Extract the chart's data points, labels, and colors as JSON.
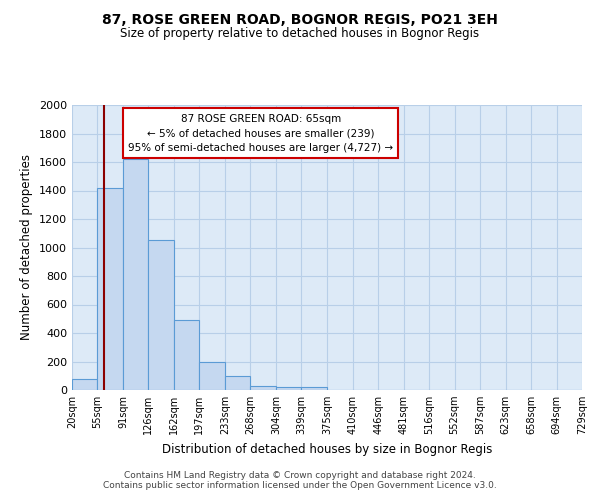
{
  "title": "87, ROSE GREEN ROAD, BOGNOR REGIS, PO21 3EH",
  "subtitle": "Size of property relative to detached houses in Bognor Regis",
  "xlabel": "Distribution of detached houses by size in Bognor Regis",
  "ylabel": "Number of detached properties",
  "bin_edges": [
    20,
    55,
    91,
    126,
    162,
    197,
    233,
    268,
    304,
    339,
    375,
    410,
    446,
    481,
    516,
    552,
    587,
    623,
    658,
    694,
    729
  ],
  "bar_heights": [
    80,
    1420,
    1620,
    1050,
    490,
    200,
    100,
    30,
    20,
    20,
    0,
    0,
    0,
    0,
    0,
    0,
    0,
    0,
    0,
    0
  ],
  "bar_color": "#c5d8f0",
  "bar_edge_color": "#5b9bd5",
  "grid_color": "#b8cfe8",
  "vline_x": 65,
  "vline_color": "#8b0000",
  "annotation_text": "87 ROSE GREEN ROAD: 65sqm\n← 5% of detached houses are smaller (239)\n95% of semi-detached houses are larger (4,727) →",
  "annotation_box_color": "white",
  "annotation_box_edge_color": "#cc0000",
  "ylim": [
    0,
    2000
  ],
  "yticks": [
    0,
    200,
    400,
    600,
    800,
    1000,
    1200,
    1400,
    1600,
    1800,
    2000
  ],
  "footer_text": "Contains HM Land Registry data © Crown copyright and database right 2024.\nContains public sector information licensed under the Open Government Licence v3.0.",
  "bg_color": "#ddeaf7"
}
